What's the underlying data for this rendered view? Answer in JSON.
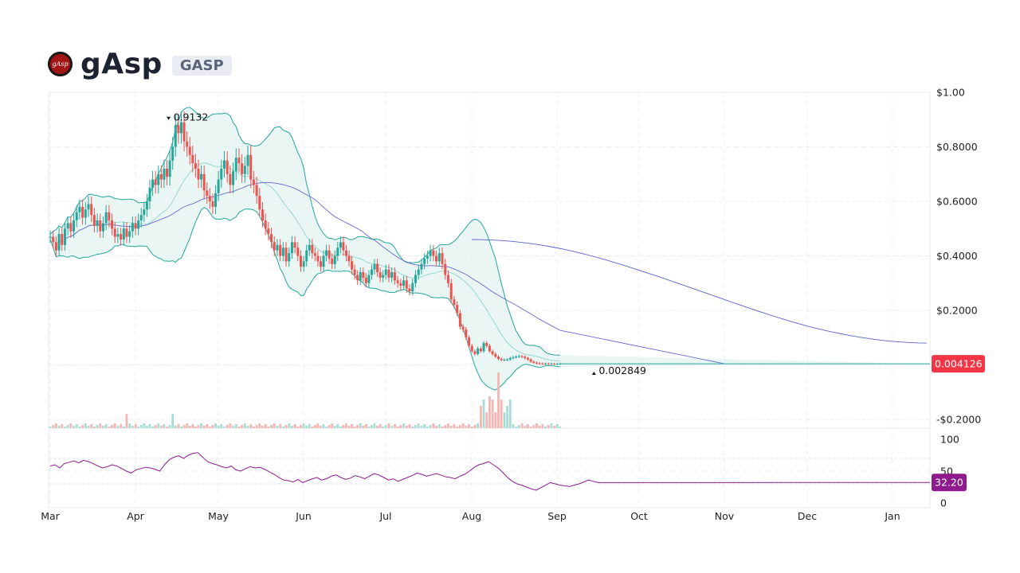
{
  "header": {
    "name": "gAsp",
    "symbol": "GASP",
    "logo_text": "gAsp"
  },
  "colors": {
    "up": "#26a69a",
    "down": "#ef5350",
    "bollinger": "#26a69a",
    "bollinger_fill": "#e3f4f1",
    "ma_short": "#9ad9cf",
    "ma_mid": "#6a6ad0",
    "ma_long": "#5b62c7",
    "rsi": "#8e1a8e",
    "price_badge": "#f23645",
    "rsi_badge": "#8e1a8e"
  },
  "chart_data": {
    "type": "candlestick",
    "x_axis": {
      "labels": [
        "Mar",
        "Apr",
        "May",
        "Jun",
        "Jul",
        "Aug",
        "Sep",
        "Oct",
        "Nov",
        "Dec",
        "Jan"
      ]
    },
    "price_axis": {
      "labels": [
        "$1.00",
        "$0.8000",
        "$0.6000",
        "$0.4000",
        "$0.2000",
        "-$0.2000"
      ],
      "values": [
        1.0,
        0.8,
        0.6,
        0.4,
        0.2,
        -0.2
      ],
      "ylim": [
        -0.2,
        1.0
      ]
    },
    "rsi_axis": {
      "labels": [
        "100",
        "50",
        "0"
      ],
      "values": [
        100,
        50,
        0
      ],
      "levels": [
        70,
        30
      ],
      "ylim": [
        0,
        100
      ]
    },
    "annotations": {
      "high": {
        "label": "0.9132",
        "value": 0.9132,
        "month": 1.4
      },
      "low": {
        "label": "0.002849",
        "value": 0.002849,
        "month": 6.45
      }
    },
    "last_price": {
      "label": "0.004126",
      "value": 0.004126
    },
    "last_rsi": {
      "label": "32.20",
      "value": 32.2
    },
    "price_series": {
      "start_month": 0,
      "step_months": 0.0345,
      "close": [
        0.47,
        0.45,
        0.42,
        0.48,
        0.44,
        0.5,
        0.52,
        0.49,
        0.53,
        0.56,
        0.58,
        0.54,
        0.57,
        0.59,
        0.55,
        0.51,
        0.53,
        0.49,
        0.52,
        0.56,
        0.53,
        0.5,
        0.47,
        0.48,
        0.46,
        0.5,
        0.47,
        0.49,
        0.52,
        0.5,
        0.53,
        0.55,
        0.57,
        0.6,
        0.65,
        0.68,
        0.66,
        0.7,
        0.68,
        0.72,
        0.69,
        0.75,
        0.8,
        0.88,
        0.85,
        0.89,
        0.82,
        0.8,
        0.77,
        0.74,
        0.72,
        0.68,
        0.7,
        0.64,
        0.62,
        0.6,
        0.58,
        0.63,
        0.68,
        0.72,
        0.75,
        0.7,
        0.66,
        0.71,
        0.76,
        0.74,
        0.7,
        0.73,
        0.77,
        0.68,
        0.66,
        0.62,
        0.57,
        0.53,
        0.5,
        0.48,
        0.45,
        0.42,
        0.44,
        0.4,
        0.43,
        0.38,
        0.41,
        0.45,
        0.43,
        0.4,
        0.36,
        0.38,
        0.42,
        0.44,
        0.41,
        0.4,
        0.38,
        0.36,
        0.4,
        0.42,
        0.39,
        0.37,
        0.4,
        0.43,
        0.45,
        0.42,
        0.4,
        0.38,
        0.35,
        0.33,
        0.31,
        0.34,
        0.32,
        0.3,
        0.33,
        0.35,
        0.37,
        0.34,
        0.32,
        0.33,
        0.35,
        0.32,
        0.34,
        0.31,
        0.3,
        0.29,
        0.31,
        0.28,
        0.27,
        0.3,
        0.33,
        0.35,
        0.37,
        0.39,
        0.4,
        0.42,
        0.4,
        0.38,
        0.41,
        0.37,
        0.33,
        0.3,
        0.24,
        0.22,
        0.19,
        0.14,
        0.13,
        0.1,
        0.07,
        0.05,
        0.04,
        0.06,
        0.05,
        0.08,
        0.07,
        0.05,
        0.04,
        0.03,
        0.022,
        0.018,
        0.019,
        0.02,
        0.025,
        0.028,
        0.03,
        0.032,
        0.03,
        0.025,
        0.02,
        0.012,
        0.008,
        0.006,
        0.005,
        0.004,
        0.0045,
        0.004,
        0.0042,
        0.004,
        0.0041,
        0.004126
      ],
      "tail_value": 0.004126,
      "tail_end_month": 10.4
    },
    "rsi_series": [
      58,
      60,
      55,
      62,
      64,
      66,
      63,
      67,
      65,
      62,
      58,
      55,
      57,
      60,
      58,
      54,
      50,
      47,
      52,
      54,
      56,
      55,
      53,
      50,
      60,
      68,
      72,
      74,
      70,
      75,
      78,
      79,
      72,
      65,
      62,
      60,
      57,
      55,
      58,
      52,
      50,
      54,
      57,
      55,
      56,
      53,
      49,
      45,
      40,
      36,
      35,
      33,
      37,
      32,
      35,
      38,
      40,
      36,
      38,
      42,
      44,
      40,
      37,
      39,
      43,
      41,
      38,
      42,
      46,
      44,
      40,
      36,
      38,
      34,
      37,
      40,
      43,
      47,
      45,
      42,
      44,
      46,
      44,
      41,
      40,
      38,
      42,
      45,
      50,
      56,
      60,
      62,
      65,
      60,
      55,
      48,
      40,
      34,
      30,
      28,
      25,
      22,
      20,
      24,
      28,
      32,
      30,
      28,
      27,
      26,
      28,
      30,
      33,
      36,
      34,
      32
    ],
    "rsi_tail": 32.2
  }
}
